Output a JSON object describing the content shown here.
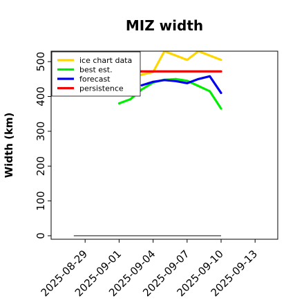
{
  "chart_data": {
    "type": "line",
    "title": "MIZ width",
    "xlabel": "",
    "ylabel": "Width (km)",
    "ylim": [
      -10,
      530
    ],
    "xlim": [
      "2025-08-26",
      "2025-09-15"
    ],
    "yticks": [
      0,
      100,
      200,
      300,
      400,
      500
    ],
    "xticks": [
      "2025-08-29",
      "2025-09-01",
      "2025-09-04",
      "2025-09-07",
      "2025-09-10",
      "2025-09-13"
    ],
    "xtick_colors": [
      "#000000",
      "#000000",
      "#228B22",
      "#000000",
      "#000000",
      "#000000"
    ],
    "legend_position": "upper-left",
    "series": [
      {
        "name": "ice chart data",
        "color": "#FFD700",
        "x": [
          "2025-09-02",
          "2025-09-04",
          "2025-09-05",
          "2025-09-07",
          "2025-09-08",
          "2025-09-10"
        ],
        "y": [
          455,
          470,
          530,
          505,
          530,
          505
        ]
      },
      {
        "name": "best est.",
        "color": "#00EE00",
        "x": [
          "2025-09-01",
          "2025-09-02",
          "2025-09-03",
          "2025-09-04",
          "2025-09-05",
          "2025-09-06",
          "2025-09-07",
          "2025-09-08",
          "2025-09-09",
          "2025-09-10"
        ],
        "y": [
          380,
          392,
          420,
          440,
          448,
          450,
          445,
          430,
          415,
          365
        ]
      },
      {
        "name": "forecast",
        "color": "#0000EE",
        "x": [
          "2025-09-03",
          "2025-09-04",
          "2025-09-05",
          "2025-09-06",
          "2025-09-07",
          "2025-09-08",
          "2025-09-09",
          "2025-09-10"
        ],
        "y": [
          432,
          442,
          447,
          444,
          438,
          450,
          458,
          410
        ]
      },
      {
        "name": "persistence",
        "color": "#EE0000",
        "x": [
          "2025-09-01",
          "2025-09-10"
        ],
        "y": [
          472,
          472
        ]
      }
    ],
    "reference_line": {
      "color": "#666666",
      "x": [
        "2025-08-28",
        "2025-09-10"
      ],
      "y": [
        0,
        0
      ]
    }
  }
}
